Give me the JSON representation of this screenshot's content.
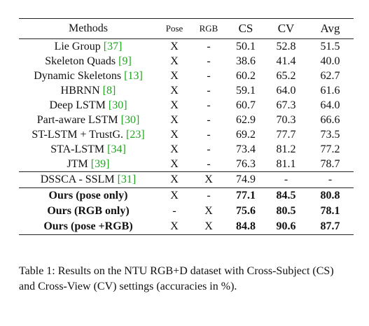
{
  "table": {
    "headers": {
      "method": "Methods",
      "pose": "Pose",
      "rgb": "RGB",
      "cs": "CS",
      "cv": "CV",
      "avg": "Avg"
    },
    "rows": [
      {
        "name": "Lie Group ",
        "cite": "[37]",
        "pose": "X",
        "rgb": "-",
        "cs": "50.1",
        "cv": "52.8",
        "avg": "51.5"
      },
      {
        "name": "Skeleton Quads ",
        "cite": "[9]",
        "pose": "X",
        "rgb": "-",
        "cs": "38.6",
        "cv": "41.4",
        "avg": "40.0"
      },
      {
        "name": "Dynamic Skeletons ",
        "cite": "[13]",
        "pose": "X",
        "rgb": "-",
        "cs": "60.2",
        "cv": "65.2",
        "avg": "62.7"
      },
      {
        "name": "HBRNN ",
        "cite": "[8]",
        "pose": "X",
        "rgb": "-",
        "cs": "59.1",
        "cv": "64.0",
        "avg": "61.6"
      },
      {
        "name": "Deep LSTM ",
        "cite": "[30]",
        "pose": "X",
        "rgb": "-",
        "cs": "60.7",
        "cv": "67.3",
        "avg": "64.0"
      },
      {
        "name": "Part-aware LSTM ",
        "cite": "[30]",
        "pose": "X",
        "rgb": "-",
        "cs": "62.9",
        "cv": "70.3",
        "avg": "66.6"
      },
      {
        "name": "ST-LSTM + TrustG. ",
        "cite": "[23]",
        "pose": "X",
        "rgb": "-",
        "cs": "69.2",
        "cv": "77.7",
        "avg": "73.5"
      },
      {
        "name": "STA-LSTM ",
        "cite": "[34]",
        "pose": "X",
        "rgb": "-",
        "cs": "73.4",
        "cv": "81.2",
        "avg": "77.2"
      },
      {
        "name": "JTM ",
        "cite": "[39]",
        "pose": "X",
        "rgb": "-",
        "cs": "76.3",
        "cv": "81.1",
        "avg": "78.7"
      }
    ],
    "rows_b": [
      {
        "name": "DSSCA - SSLM ",
        "cite": "[31]",
        "pose": "X",
        "rgb": "X",
        "cs": "74.9",
        "cv": "-",
        "avg": "-"
      }
    ],
    "rows_ours": [
      {
        "name": "Ours (pose only)",
        "pose": "X",
        "rgb": "-",
        "cs": "77.1",
        "cv": "84.5",
        "avg": "80.8"
      },
      {
        "name": "Ours (RGB only)",
        "pose": "-",
        "rgb": "X",
        "cs": "75.6",
        "cv": "80.5",
        "avg": "78.1"
      },
      {
        "name": "Ours (pose +RGB)",
        "pose": "X",
        "rgb": "X",
        "cs": "84.8",
        "cv": "90.6",
        "avg": "87.7"
      }
    ]
  },
  "caption": "Table 1: Results on the NTU RGB+D dataset with Cross-Subject (CS) and Cross-View (CV) settings (accuracies in %).",
  "colors": {
    "citation": "#1fa51f",
    "rule": "#222222"
  }
}
